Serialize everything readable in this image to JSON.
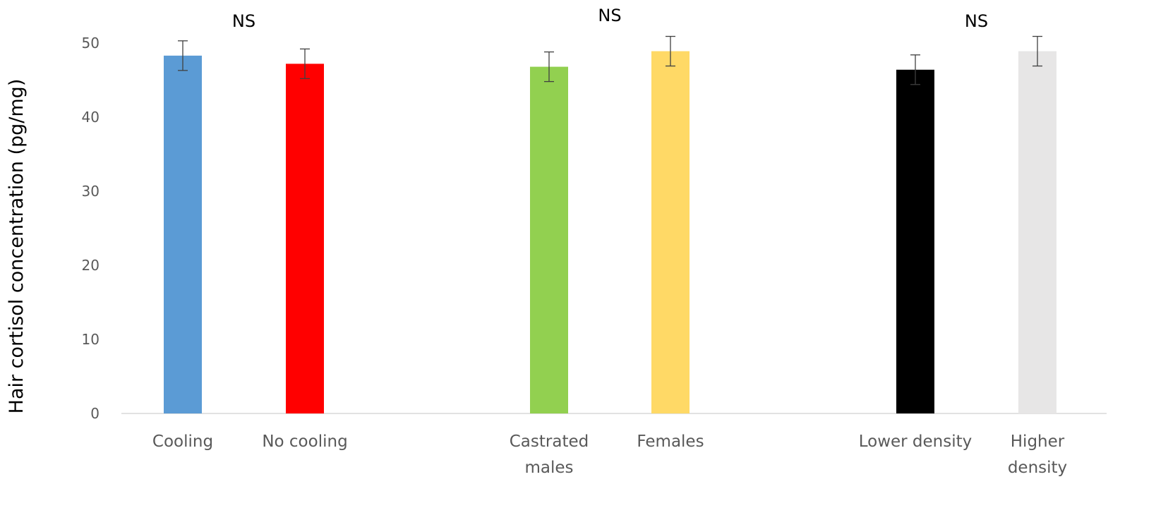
{
  "chart_data": {
    "type": "bar",
    "title": "",
    "xlabel": "",
    "ylabel": "Hair cortisol concentration  (pg/mg)",
    "ylim": [
      0,
      50
    ],
    "yticks": [
      "0",
      "10",
      "20",
      "30",
      "40",
      "50"
    ],
    "grid": false,
    "groups": [
      {
        "significance": "NS",
        "bars": [
          {
            "label": [
              "Cooling"
            ],
            "value": 48.3,
            "error": 2.0,
            "color": "#5b9bd5"
          },
          {
            "label": [
              "No cooling"
            ],
            "value": 47.2,
            "error": 2.0,
            "color": "#ff0000"
          }
        ]
      },
      {
        "significance": "NS",
        "bars": [
          {
            "label": [
              "Castrated",
              "males"
            ],
            "value": 46.8,
            "error": 2.0,
            "color": "#92d050"
          },
          {
            "label": [
              "Females"
            ],
            "value": 48.9,
            "error": 2.0,
            "color": "#ffd966"
          }
        ]
      },
      {
        "significance": "NS",
        "bars": [
          {
            "label": [
              "Lower density"
            ],
            "value": 46.4,
            "error": 2.0,
            "color": "#000000"
          },
          {
            "label": [
              "Higher",
              "density"
            ],
            "value": 48.9,
            "error": 2.0,
            "color": "#e7e6e6"
          }
        ]
      }
    ]
  }
}
